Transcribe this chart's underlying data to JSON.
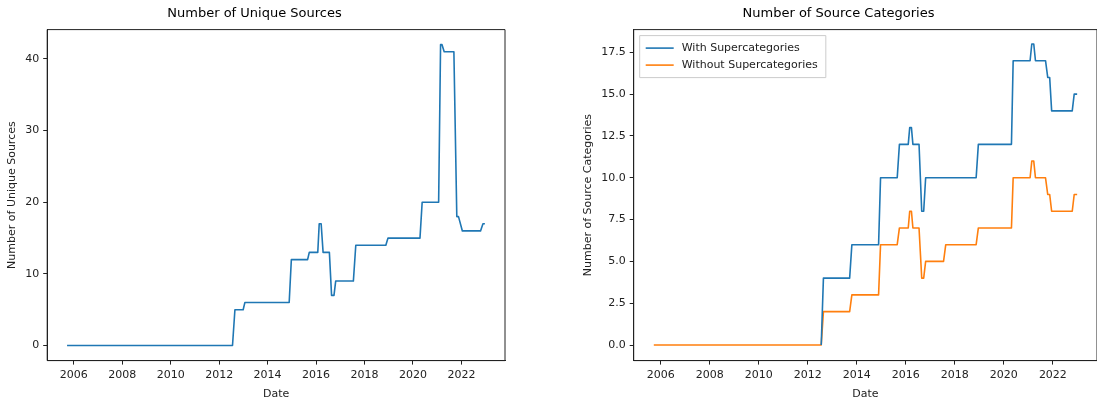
{
  "chart_data": [
    {
      "type": "line",
      "title": "Number of Unique Sources",
      "xlabel": "Date",
      "ylabel": "Number of Unique Sources",
      "xlim": [
        2004.9,
        2023.8
      ],
      "xticks": [
        2006,
        2008,
        2010,
        2012,
        2014,
        2016,
        2018,
        2020,
        2022
      ],
      "ylim": [
        -2.1,
        44.1
      ],
      "yticks": [
        0,
        10,
        20,
        30,
        40
      ],
      "grid": false,
      "legend": false,
      "series": [
        {
          "color": "#1f77b4",
          "x": [
            2005.72,
            2012.55,
            2012.65,
            2012.99,
            2013.06,
            2014.89,
            2014.98,
            2015.65,
            2015.72,
            2016.07,
            2016.13,
            2016.21,
            2016.29,
            2016.55,
            2016.64,
            2016.74,
            2016.81,
            2017.54,
            2017.64,
            2018.88,
            2018.97,
            2020.29,
            2020.38,
            2021.06,
            2021.14,
            2021.2,
            2021.29,
            2021.69,
            2021.81,
            2021.88,
            2022.04,
            2022.79,
            2022.89,
            2022.97
          ],
          "values": [
            0,
            0,
            5,
            5,
            6,
            6,
            12,
            12,
            13,
            13,
            17,
            17,
            13,
            13,
            7,
            7,
            9,
            9,
            14,
            14,
            15,
            15,
            20,
            20,
            42,
            42,
            41,
            41,
            18,
            18,
            16,
            16,
            17,
            17
          ]
        }
      ]
    },
    {
      "type": "line",
      "title": "Number of Source Categories",
      "xlabel": "Date",
      "ylabel": "Number of Source Categories",
      "xlim": [
        2004.9,
        2023.8
      ],
      "xticks": [
        2006,
        2008,
        2010,
        2012,
        2014,
        2016,
        2018,
        2020,
        2022
      ],
      "ylim": [
        -0.93,
        18.86
      ],
      "yticks": [
        {
          "value": 0,
          "label": "0.0"
        },
        {
          "value": 2.5,
          "label": "2.5"
        },
        {
          "value": 5,
          "label": "5.0"
        },
        {
          "value": 7.5,
          "label": "7.5"
        },
        {
          "value": 10,
          "label": "10.0"
        },
        {
          "value": 12.5,
          "label": "12.5"
        },
        {
          "value": 15,
          "label": "15.0"
        },
        {
          "value": 17.5,
          "label": "17.5"
        }
      ],
      "grid": false,
      "legend": "top left",
      "series": [
        {
          "name": "With Supercategories",
          "color": "#1f77b4",
          "x": [
            2012.55,
            2012.64,
            2013.71,
            2013.8,
            2014.89,
            2014.97,
            2015.65,
            2015.74,
            2016.1,
            2016.16,
            2016.23,
            2016.29,
            2016.54,
            2016.65,
            2016.73,
            2016.81,
            2018.87,
            2018.96,
            2020.31,
            2020.38,
            2021.07,
            2021.14,
            2021.22,
            2021.29,
            2021.7,
            2021.79,
            2021.87,
            2021.95,
            2022.79,
            2022.87,
            2022.99
          ],
          "values": [
            0,
            4,
            4,
            6,
            6,
            10,
            10,
            12,
            12,
            13,
            13,
            12,
            12,
            8,
            8,
            10,
            10,
            12,
            12,
            17,
            17,
            18,
            18,
            17,
            17,
            16,
            16,
            14,
            14,
            15,
            15
          ]
        },
        {
          "name": "Without Supercategories",
          "color": "#ff7f0e",
          "x": [
            2005.72,
            2012.55,
            2012.64,
            2013.71,
            2013.8,
            2014.89,
            2014.97,
            2015.65,
            2015.74,
            2016.1,
            2016.16,
            2016.23,
            2016.29,
            2016.54,
            2016.65,
            2016.73,
            2016.81,
            2017.54,
            2017.63,
            2018.87,
            2018.96,
            2020.31,
            2020.38,
            2021.07,
            2021.14,
            2021.22,
            2021.29,
            2021.7,
            2021.79,
            2021.87,
            2021.95,
            2022.79,
            2022.87,
            2022.99
          ],
          "values": [
            0,
            0,
            2,
            2,
            3,
            3,
            6,
            6,
            7,
            7,
            8,
            8,
            7,
            7,
            4,
            4,
            5,
            5,
            6,
            6,
            7,
            7,
            10,
            10,
            11,
            11,
            10,
            10,
            9,
            9,
            8,
            8,
            9,
            9
          ]
        }
      ]
    }
  ]
}
